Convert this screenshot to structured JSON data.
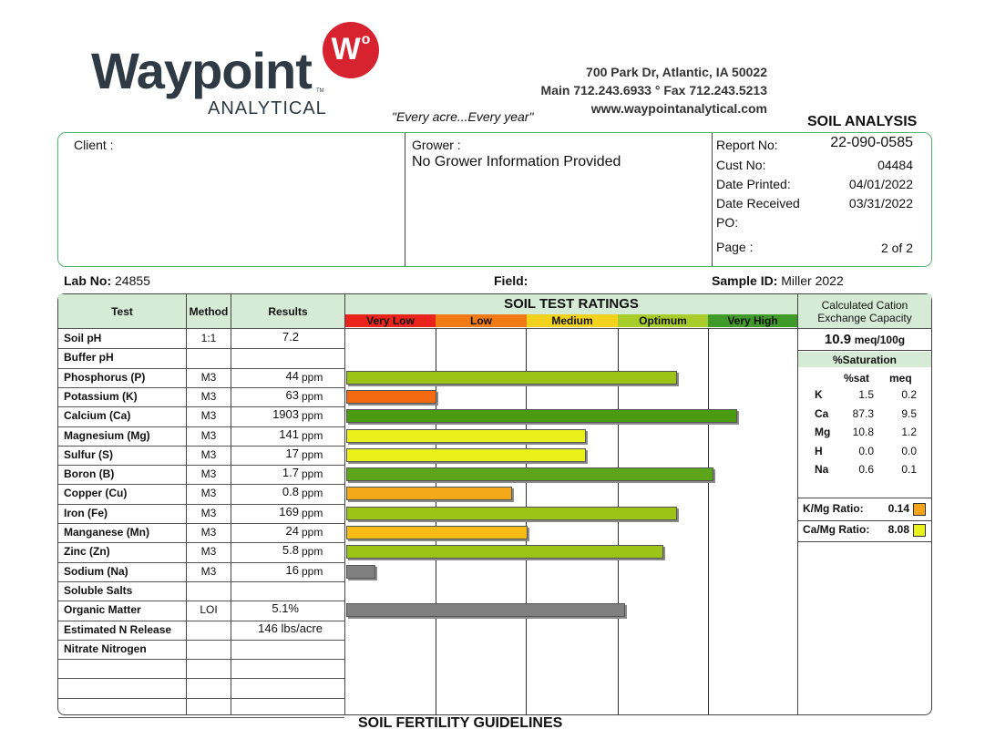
{
  "header": {
    "logo_word": "Waypoint",
    "logo_sub": "ANALYTICAL",
    "logo_badge": "W",
    "logo_badge_mark": "o",
    "tm": "TM",
    "tagline": "\"Every acre...Every year\"",
    "address_line1": "700 Park Dr, Atlantic, IA 50022",
    "address_line2": "Main 712.243.6933 ° Fax 712.243.5213",
    "address_line3": "www.waypointanalytical.com",
    "report_title": "SOIL ANALYSIS"
  },
  "info": {
    "client_label": "Client :",
    "grower_label": "Grower :",
    "grower_value": "No Grower Information Provided",
    "report_no_label": "Report No:",
    "report_no": "22-090-0585",
    "cust_no_label": "Cust No:",
    "cust_no": "04484",
    "date_printed_label": "Date Printed:",
    "date_printed": "04/01/2022",
    "date_received_label": "Date Received",
    "date_received": "03/31/2022",
    "po_label": "PO:",
    "page_label": "Page :",
    "page_value": "2 of 2"
  },
  "lab": {
    "lab_no_label": "Lab No:",
    "lab_no": "24855",
    "field_label": "Field:",
    "sample_id_label": "Sample ID:",
    "sample_id": "Miller 2022"
  },
  "table": {
    "col_test": "Test",
    "col_method": "Method",
    "col_results": "Results",
    "ratings_title": "SOIL TEST RATINGS",
    "rating_levels": [
      {
        "label": "Very Low",
        "color": "#e8241c"
      },
      {
        "label": "Low",
        "color": "#f07a14"
      },
      {
        "label": "Medium",
        "color": "#f3d21e"
      },
      {
        "label": "Optimum",
        "color": "#a8cc2a"
      },
      {
        "label": "Very High",
        "color": "#3f9a2a"
      }
    ],
    "rows": [
      {
        "test": "Soil pH",
        "method": "1:1",
        "result": "7.2",
        "unit": "",
        "bar_level": null,
        "bar_color": null
      },
      {
        "test": "Buffer pH",
        "method": "",
        "result": "",
        "unit": "",
        "bar_level": null,
        "bar_color": null
      },
      {
        "test": "Phosphorus (P)",
        "method": "M3",
        "result": "44",
        "unit": "ppm",
        "bar_level": 3.65,
        "bar_color": "#9cc317"
      },
      {
        "test": "Potassium (K)",
        "method": "M3",
        "result": "63",
        "unit": "ppm",
        "bar_level": 1.0,
        "bar_color": "#f46a10"
      },
      {
        "test": "Calcium (Ca)",
        "method": "M3",
        "result": "1903",
        "unit": "ppm",
        "bar_level": 4.32,
        "bar_color": "#4a9a12"
      },
      {
        "test": "Magnesium (Mg)",
        "method": "M3",
        "result": "141",
        "unit": "ppm",
        "bar_level": 2.65,
        "bar_color": "#eaf01a"
      },
      {
        "test": "Sulfur (S)",
        "method": "M3",
        "result": "17",
        "unit": "ppm",
        "bar_level": 2.65,
        "bar_color": "#eaf01a"
      },
      {
        "test": "Boron (B)",
        "method": "M3",
        "result": "1.7",
        "unit": "ppm",
        "bar_level": 4.05,
        "bar_color": "#5ca41a"
      },
      {
        "test": "Copper (Cu)",
        "method": "M3",
        "result": "0.8",
        "unit": "ppm",
        "bar_level": 1.83,
        "bar_color": "#f2a818"
      },
      {
        "test": "Iron (Fe)",
        "method": "M3",
        "result": "169",
        "unit": "ppm",
        "bar_level": 3.65,
        "bar_color": "#9cc317"
      },
      {
        "test": "Manganese (Mn)",
        "method": "M3",
        "result": "24",
        "unit": "ppm",
        "bar_level": 2.0,
        "bar_color": "#f6bb14"
      },
      {
        "test": "Zinc (Zn)",
        "method": "M3",
        "result": "5.8",
        "unit": "ppm",
        "bar_level": 3.5,
        "bar_color": "#9cc317"
      },
      {
        "test": "Sodium (Na)",
        "method": "M3",
        "result": "16",
        "unit": "ppm",
        "bar_level": 0.32,
        "bar_color": "#808080"
      },
      {
        "test": "Soluble Salts",
        "method": "",
        "result": "",
        "unit": "",
        "bar_level": null,
        "bar_color": null
      },
      {
        "test": "Organic Matter",
        "method": "LOI",
        "result": "5.1%",
        "unit": "",
        "bar_level": 3.08,
        "bar_color": "#808080"
      },
      {
        "test": "Estimated N Release",
        "method": "",
        "result": "146 lbs/acre",
        "unit": "",
        "bar_level": null,
        "bar_color": null
      },
      {
        "test": "Nitrate Nitrogen",
        "method": "",
        "result": "",
        "unit": "",
        "bar_level": null,
        "bar_color": null
      },
      {
        "test": "",
        "method": "",
        "result": "",
        "unit": "",
        "bar_level": null,
        "bar_color": null
      },
      {
        "test": "",
        "method": "",
        "result": "",
        "unit": "",
        "bar_level": null,
        "bar_color": null
      },
      {
        "test": "",
        "method": "",
        "result": "",
        "unit": "",
        "bar_level": null,
        "bar_color": null
      }
    ]
  },
  "cec": {
    "title_line1": "Calculated Cation",
    "title_line2": "Exchange Capacity",
    "value": "10.9",
    "unit": "meq/100g",
    "saturation_title": "%Saturation",
    "col_sat": "%sat",
    "col_meq": "meq",
    "cations": [
      {
        "ion": "K",
        "sat": "1.5",
        "meq": "0.2"
      },
      {
        "ion": "Ca",
        "sat": "87.3",
        "meq": "9.5"
      },
      {
        "ion": "Mg",
        "sat": "10.8",
        "meq": "1.2"
      },
      {
        "ion": "H",
        "sat": "0.0",
        "meq": "0.0"
      },
      {
        "ion": "Na",
        "sat": "0.6",
        "meq": "0.1"
      }
    ],
    "ratios": [
      {
        "label": "K/Mg Ratio:",
        "value": "0.14",
        "color": "#f6a318"
      },
      {
        "label": "Ca/Mg Ratio:",
        "value": "8.08",
        "color": "#eaf01a"
      }
    ]
  },
  "footer": {
    "guidelines_title": "SOIL FERTILITY GUIDELINES"
  }
}
